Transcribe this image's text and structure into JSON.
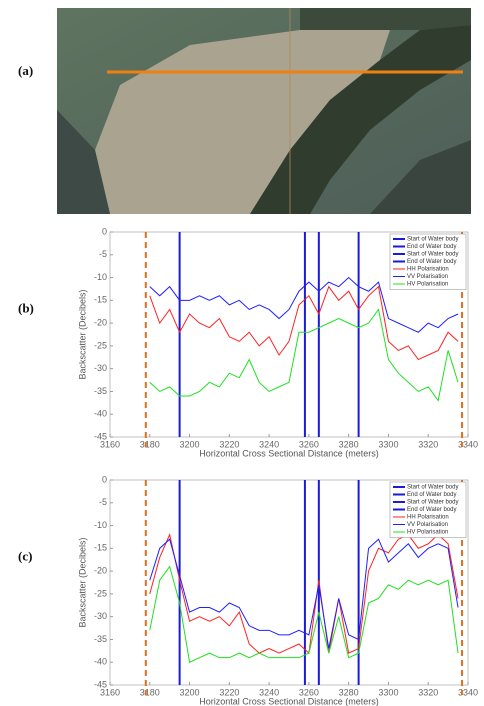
{
  "image_label": "(a)",
  "chart_data": [
    {
      "type": "line",
      "label": "(b)",
      "x_label": "Horizontal Cross Sectional Distance (meters)",
      "y_label": "Backscatter (Decibels)",
      "xlim": [
        3160,
        3340
      ],
      "ylim": [
        -45,
        0
      ],
      "xticks": [
        3160,
        3180,
        3200,
        3220,
        3240,
        3260,
        3280,
        3300,
        3320,
        3340
      ],
      "yticks": [
        0,
        -5,
        -10,
        -15,
        -20,
        -25,
        -30,
        -35,
        -40,
        -45
      ],
      "vlines": [
        {
          "name": "Start of Water body",
          "color": "#1a1adc",
          "x": 3195
        },
        {
          "name": "End of Water body",
          "color": "#1a1adc",
          "x": 3258
        },
        {
          "name": "Start of Water body",
          "color": "#1a1adc",
          "x": 3265
        },
        {
          "name": "End of Water body",
          "color": "#1a1adc",
          "x": 3285
        }
      ],
      "bounds": {
        "color": "#e07020",
        "x": [
          3178,
          3337
        ]
      },
      "x": [
        3180,
        3185,
        3190,
        3195,
        3200,
        3205,
        3210,
        3215,
        3220,
        3225,
        3230,
        3235,
        3240,
        3245,
        3250,
        3255,
        3260,
        3265,
        3270,
        3275,
        3280,
        3285,
        3290,
        3295,
        3300,
        3305,
        3310,
        3315,
        3320,
        3325,
        3330,
        3335
      ],
      "series": [
        {
          "name": "HH Polarisation",
          "color": "#ff2020",
          "values": [
            -14,
            -20,
            -17,
            -22,
            -18,
            -20,
            -21,
            -19,
            -23,
            -24,
            -22,
            -25,
            -23,
            -27,
            -24,
            -16,
            -14,
            -18,
            -12,
            -15,
            -13,
            -17,
            -14,
            -12,
            -24,
            -26,
            -25,
            -28,
            -27,
            -26,
            -22,
            -24
          ]
        },
        {
          "name": "VV Polarisation",
          "color": "#2020ff",
          "values": [
            -12,
            -14,
            -12,
            -15,
            -15,
            -14,
            -15,
            -14,
            -16,
            -15,
            -17,
            -16,
            -17,
            -19,
            -17,
            -13,
            -11,
            -13,
            -11,
            -12,
            -10,
            -12,
            -13,
            -11,
            -19,
            -20,
            -21,
            -22,
            -20,
            -21,
            -19,
            -18
          ]
        },
        {
          "name": "HV Polarisation",
          "color": "#20e020",
          "values": [
            -33,
            -35,
            -34,
            -36,
            -36,
            -35,
            -33,
            -34,
            -31,
            -32,
            -28,
            -33,
            -35,
            -34,
            -33,
            -22,
            -22,
            -21,
            -20,
            -19,
            -20,
            -21,
            -20,
            -17,
            -28,
            -31,
            -33,
            -35,
            -34,
            -37,
            -26,
            -33
          ]
        }
      ]
    },
    {
      "type": "line",
      "label": "(c)",
      "x_label": "Horizontal Cross Sectional Distance (meters)",
      "y_label": "Backscatter (Decibels)",
      "xlim": [
        3160,
        3340
      ],
      "ylim": [
        -45,
        0
      ],
      "xticks": [
        3160,
        3180,
        3200,
        3220,
        3240,
        3260,
        3280,
        3300,
        3320,
        3340
      ],
      "yticks": [
        0,
        -5,
        -10,
        -15,
        -20,
        -25,
        -30,
        -35,
        -40,
        -45
      ],
      "vlines": [
        {
          "name": "Start of Water body",
          "color": "#1a1adc",
          "x": 3195
        },
        {
          "name": "End of Water body",
          "color": "#1a1adc",
          "x": 3258
        },
        {
          "name": "Start of Water body",
          "color": "#1a1adc",
          "x": 3265
        },
        {
          "name": "End of Water body",
          "color": "#1a1adc",
          "x": 3285
        }
      ],
      "bounds": {
        "color": "#e07020",
        "x": [
          3178,
          3337
        ]
      },
      "x": [
        3180,
        3185,
        3190,
        3195,
        3200,
        3205,
        3210,
        3215,
        3220,
        3225,
        3230,
        3235,
        3240,
        3245,
        3250,
        3255,
        3260,
        3265,
        3270,
        3275,
        3280,
        3285,
        3290,
        3295,
        3300,
        3305,
        3310,
        3315,
        3320,
        3325,
        3330,
        3335
      ],
      "series": [
        {
          "name": "HH Polarisation",
          "color": "#ff2020",
          "values": [
            -25,
            -17,
            -12,
            -22,
            -31,
            -30,
            -31,
            -30,
            -32,
            -29,
            -36,
            -38,
            -37,
            -38,
            -37,
            -36,
            -38,
            -22,
            -38,
            -26,
            -38,
            -37,
            -20,
            -15,
            -16,
            -13,
            -12,
            -15,
            -14,
            -12,
            -14,
            -26
          ]
        },
        {
          "name": "VV Polarisation",
          "color": "#2020ff",
          "values": [
            -22,
            -15,
            -13,
            -21,
            -29,
            -28,
            -28,
            -29,
            -27,
            -28,
            -32,
            -33,
            -33,
            -34,
            -34,
            -33,
            -34,
            -23,
            -37,
            -26,
            -34,
            -35,
            -15,
            -13,
            -18,
            -16,
            -14,
            -17,
            -15,
            -14,
            -15,
            -28
          ]
        },
        {
          "name": "HV Polarisation",
          "color": "#20e020",
          "values": [
            -33,
            -22,
            -19,
            -27,
            -40,
            -39,
            -38,
            -39,
            -39,
            -38,
            -39,
            -38,
            -39,
            -39,
            -39,
            -39,
            -38,
            -29,
            -38,
            -30,
            -39,
            -38,
            -27,
            -26,
            -23,
            -24,
            -22,
            -23,
            -22,
            -23,
            -22,
            -38
          ]
        }
      ]
    }
  ]
}
